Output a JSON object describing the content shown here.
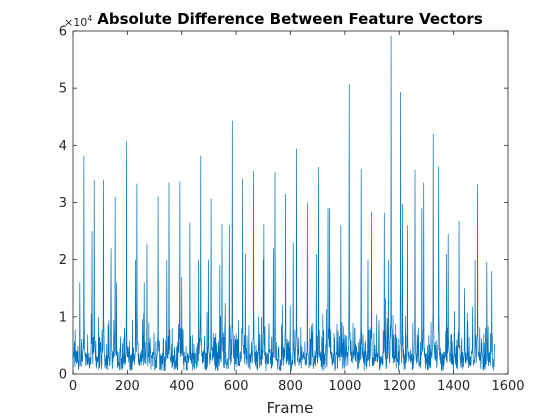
{
  "chart_data": {
    "type": "line",
    "title": "Absolute Difference Between Feature Vectors",
    "xlabel": "Frame",
    "ylabel": "",
    "xlim": [
      0,
      1600
    ],
    "ylim": [
      0,
      6
    ],
    "y_exponent_label": "×10",
    "y_exponent": "4",
    "x_ticks": [
      "0",
      "200",
      "400",
      "600",
      "800",
      "1000",
      "1200",
      "1400",
      "1600"
    ],
    "y_ticks": [
      "0",
      "1",
      "2",
      "3",
      "4",
      "5",
      "6"
    ],
    "line_color": "#0072bd",
    "grid": false,
    "n_frames": 1550,
    "peaks": [
      {
        "x": 40,
        "y": 3.82
      },
      {
        "x": 78,
        "y": 3.4
      },
      {
        "x": 112,
        "y": 3.4
      },
      {
        "x": 155,
        "y": 3.1
      },
      {
        "x": 197,
        "y": 4.07
      },
      {
        "x": 235,
        "y": 3.33
      },
      {
        "x": 272,
        "y": 2.28
      },
      {
        "x": 313,
        "y": 3.1
      },
      {
        "x": 353,
        "y": 3.35
      },
      {
        "x": 393,
        "y": 3.37
      },
      {
        "x": 430,
        "y": 2.65
      },
      {
        "x": 470,
        "y": 3.82
      },
      {
        "x": 508,
        "y": 3.07
      },
      {
        "x": 548,
        "y": 2.62
      },
      {
        "x": 586,
        "y": 4.43
      },
      {
        "x": 624,
        "y": 3.42
      },
      {
        "x": 664,
        "y": 3.55
      },
      {
        "x": 702,
        "y": 2.62
      },
      {
        "x": 743,
        "y": 3.53
      },
      {
        "x": 782,
        "y": 3.15
      },
      {
        "x": 822,
        "y": 3.94
      },
      {
        "x": 862,
        "y": 3.0
      },
      {
        "x": 903,
        "y": 3.62
      },
      {
        "x": 944,
        "y": 2.9
      },
      {
        "x": 1016,
        "y": 5.07
      },
      {
        "x": 1060,
        "y": 3.59
      },
      {
        "x": 1098,
        "y": 2.84
      },
      {
        "x": 1145,
        "y": 2.82
      },
      {
        "x": 1170,
        "y": 5.92
      },
      {
        "x": 1205,
        "y": 4.93
      },
      {
        "x": 1212,
        "y": 2.98
      },
      {
        "x": 1258,
        "y": 3.57
      },
      {
        "x": 1290,
        "y": 3.35
      },
      {
        "x": 1325,
        "y": 4.2
      },
      {
        "x": 1345,
        "y": 3.63
      },
      {
        "x": 1380,
        "y": 2.45
      },
      {
        "x": 1420,
        "y": 2.68
      },
      {
        "x": 1488,
        "y": 3.32
      },
      {
        "x": 1522,
        "y": 1.96
      },
      {
        "x": 1540,
        "y": 1.8
      }
    ],
    "secondary_peaks": [
      {
        "x": 25,
        "y": 1.6
      },
      {
        "x": 70,
        "y": 2.5
      },
      {
        "x": 140,
        "y": 2.2
      },
      {
        "x": 160,
        "y": 1.6
      },
      {
        "x": 230,
        "y": 2.0
      },
      {
        "x": 262,
        "y": 1.6
      },
      {
        "x": 345,
        "y": 2.0
      },
      {
        "x": 400,
        "y": 1.7
      },
      {
        "x": 462,
        "y": 2.0
      },
      {
        "x": 498,
        "y": 2.0
      },
      {
        "x": 540,
        "y": 1.9
      },
      {
        "x": 575,
        "y": 2.6
      },
      {
        "x": 634,
        "y": 2.1
      },
      {
        "x": 700,
        "y": 2.0
      },
      {
        "x": 737,
        "y": 2.2
      },
      {
        "x": 810,
        "y": 2.3
      },
      {
        "x": 895,
        "y": 2.1
      },
      {
        "x": 938,
        "y": 2.9
      },
      {
        "x": 985,
        "y": 2.6
      },
      {
        "x": 1085,
        "y": 2.0
      },
      {
        "x": 1160,
        "y": 2.0
      },
      {
        "x": 1230,
        "y": 2.6
      },
      {
        "x": 1283,
        "y": 2.9
      },
      {
        "x": 1374,
        "y": 2.1
      },
      {
        "x": 1440,
        "y": 1.5
      },
      {
        "x": 1479,
        "y": 2.0
      }
    ]
  }
}
